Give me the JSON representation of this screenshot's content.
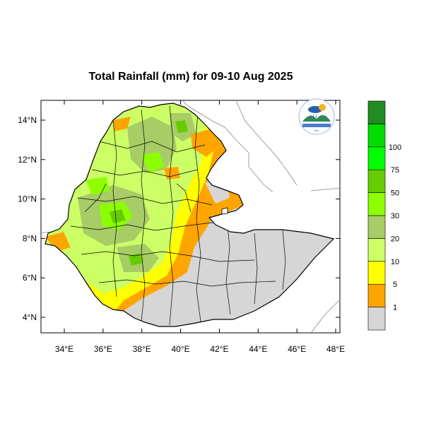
{
  "title": "Total Rainfall (mm) for 09-10 Aug 2025",
  "y_axis": {
    "ticks": [
      "4°N",
      "6°N",
      "8°N",
      "10°N",
      "12°N",
      "14°N"
    ]
  },
  "x_axis": {
    "ticks": [
      "34°E",
      "36°E",
      "38°E",
      "40°E",
      "42°E",
      "44°E",
      "46°E",
      "48°E"
    ]
  },
  "legend": {
    "bins": [
      {
        "label": "",
        "color": "#d6d6d6"
      },
      {
        "label": "1",
        "color": "#ffa500"
      },
      {
        "label": "5",
        "color": "#ffff00"
      },
      {
        "label": "10",
        "color": "#ccff66"
      },
      {
        "label": "20",
        "color": "#a8cc66"
      },
      {
        "label": "30",
        "color": "#8cff00"
      },
      {
        "label": "50",
        "color": "#66cc00"
      },
      {
        "label": "75",
        "color": "#00ff00"
      },
      {
        "label": "100",
        "color": "#00dd00"
      },
      {
        "label": "",
        "color": "#228b22"
      }
    ]
  },
  "logo": {
    "name": "ethiopian-meteorology-institute-logo",
    "text": "EMI"
  }
}
